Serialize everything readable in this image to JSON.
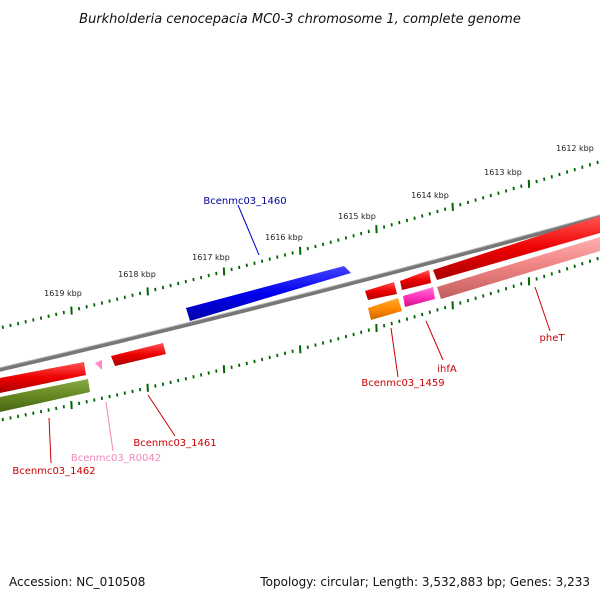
{
  "title": "Burkholderia cenocepacia MC0-3 chromosome 1, complete genome",
  "footer": {
    "accession": "Accession: NC_010508",
    "topology": "Topology: circular; Length: 3,532,883 bp; Genes: 3,233"
  },
  "scale": {
    "unit": "kbp",
    "labels": [
      "1619 kbp",
      "1618 kbp",
      "1617 kbp",
      "1616 kbp",
      "1615 kbp",
      "1614 kbp",
      "1613 kbp",
      "1612 kbp"
    ]
  },
  "genes": [
    {
      "name": "Bcenmc03_1460",
      "color": "#0000cc",
      "strand": "forward-outer"
    },
    {
      "name": "Bcenmc03_1459",
      "color": "#cc0000",
      "strand": "reverse"
    },
    {
      "name": "ihfA",
      "color": "#cc0000",
      "strand": "reverse"
    },
    {
      "name": "pheT",
      "color": "#cc0000",
      "strand": "reverse"
    },
    {
      "name": "Bcenmc03_1461",
      "color": "#cc0000",
      "strand": "reverse"
    },
    {
      "name": "Bcenmc03_R0042",
      "color": "#ee88bb",
      "strand": "reverse"
    },
    {
      "name": "Bcenmc03_1462",
      "color": "#cc0000",
      "strand": "reverse"
    }
  ],
  "colors": {
    "backbone": "#888888",
    "ticks": "#006600",
    "cds_red": "#ee0000",
    "cds_pink": "#ee99aa",
    "rna_pink": "#ff66cc",
    "cds_orange": "#ff8800",
    "cds_olive": "#668822",
    "cds_blue": "#0000ee"
  }
}
